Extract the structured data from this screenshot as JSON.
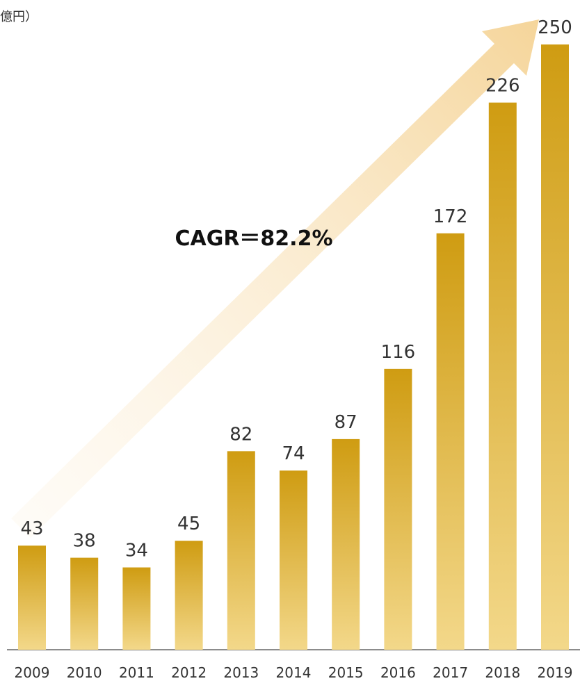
{
  "chart_data": {
    "type": "bar",
    "unit_label": "億円）",
    "annotation": "CAGR＝82.2%",
    "categories": [
      "2009",
      "2010",
      "2011",
      "2012",
      "2013",
      "2014",
      "2015",
      "2016",
      "2017",
      "2018",
      "2019"
    ],
    "values": [
      43,
      38,
      34,
      45,
      82,
      74,
      87,
      116,
      172,
      226,
      250
    ],
    "color": "#cf9c12",
    "color_light": "#f3d88a"
  }
}
